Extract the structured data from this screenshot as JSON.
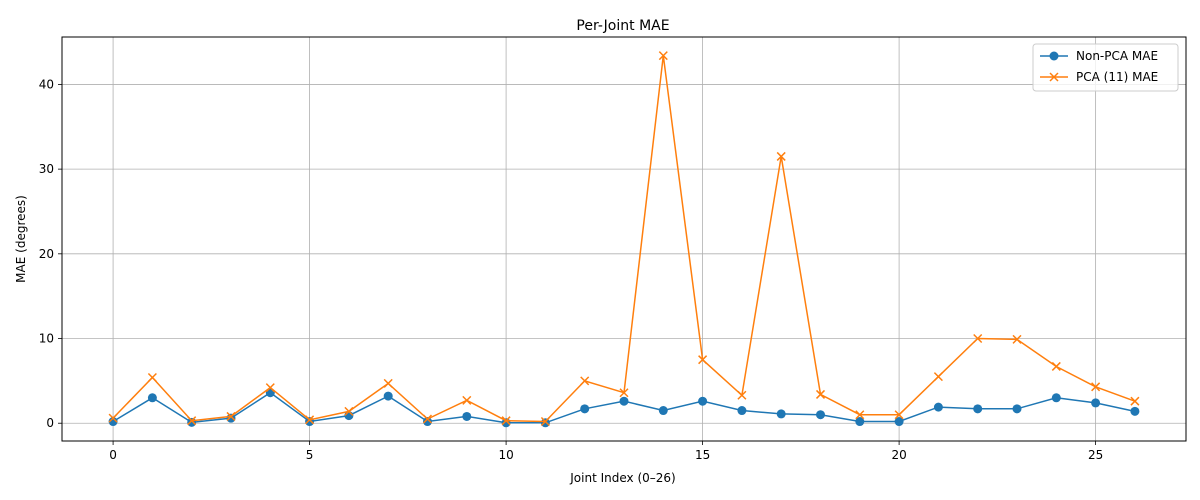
{
  "chart_data": {
    "type": "line",
    "title": "Per-Joint MAE",
    "xlabel": "Joint Index (0–26)",
    "ylabel": "MAE (degrees)",
    "xlim": [
      -1.3,
      27.3
    ],
    "ylim": [
      -2.1,
      45.6
    ],
    "xticks": [
      0,
      5,
      10,
      15,
      20,
      25
    ],
    "yticks": [
      0,
      10,
      20,
      30,
      40
    ],
    "grid": true,
    "legend_position": "top-right",
    "x": [
      0,
      1,
      2,
      3,
      4,
      5,
      6,
      7,
      8,
      9,
      10,
      11,
      12,
      13,
      14,
      15,
      16,
      17,
      18,
      19,
      20,
      21,
      22,
      23,
      24,
      25,
      26
    ],
    "series": [
      {
        "name": "Non-PCA MAE",
        "marker": "circle",
        "color": "#1f77b4",
        "values": [
          0.2,
          3.0,
          0.1,
          0.6,
          3.6,
          0.2,
          0.9,
          3.2,
          0.2,
          0.8,
          0.05,
          0.05,
          1.7,
          2.6,
          1.5,
          2.6,
          1.5,
          1.1,
          1.0,
          0.2,
          0.2,
          1.9,
          1.7,
          1.7,
          3.0,
          2.4,
          1.4
        ]
      },
      {
        "name": "PCA (11) MAE",
        "marker": "x",
        "color": "#ff7f0e",
        "values": [
          0.6,
          5.4,
          0.3,
          0.8,
          4.2,
          0.4,
          1.4,
          4.7,
          0.5,
          2.7,
          0.3,
          0.2,
          5.0,
          3.6,
          43.4,
          7.5,
          3.3,
          31.5,
          3.4,
          1.0,
          1.0,
          5.5,
          10.0,
          9.9,
          6.7,
          4.3,
          2.6
        ]
      }
    ]
  }
}
